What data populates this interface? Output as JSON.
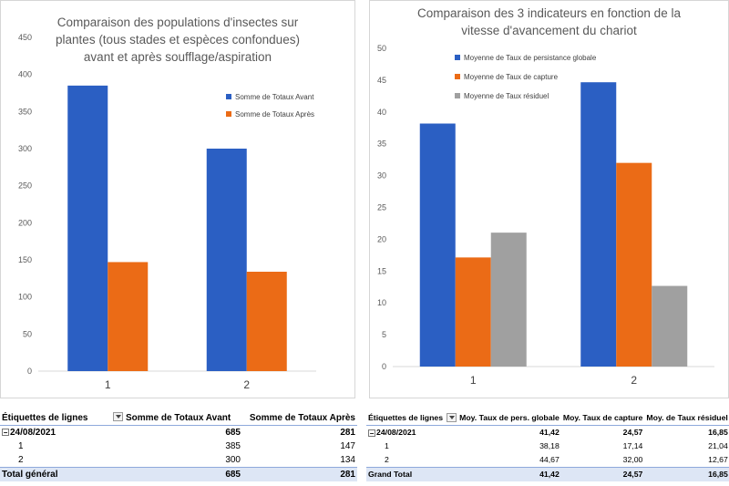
{
  "chart_data": [
    {
      "type": "bar",
      "title": "Comparaison des populations d'insectes sur\nplantes (tous stades et espèces confondues)\navant et après soufflage/aspiration",
      "categories": [
        "1",
        "2"
      ],
      "series": [
        {
          "name": "Somme de Totaux Avant",
          "values": [
            385,
            300
          ],
          "color": "#2b5fc3"
        },
        {
          "name": "Somme de Totaux Après",
          "values": [
            147,
            134
          ],
          "color": "#eb6b16"
        }
      ],
      "ylim": [
        0,
        450
      ],
      "yticks": [
        "0",
        "50",
        "100",
        "150",
        "200",
        "250",
        "300",
        "350",
        "400",
        "450"
      ],
      "grid": false,
      "legend": "right"
    },
    {
      "type": "bar",
      "title": "Comparaison des 3 indicateurs en fonction de la\nvitesse d'avancement du chariot",
      "categories": [
        "1",
        "2"
      ],
      "series": [
        {
          "name": "Moyenne de Taux de persistance globale",
          "values": [
            38.18,
            44.67
          ],
          "color": "#2b5fc3"
        },
        {
          "name": "Moyenne de Taux de capture",
          "values": [
            17.14,
            32.0
          ],
          "color": "#eb6b16"
        },
        {
          "name": "Moyenne de Taux résiduel",
          "values": [
            21.04,
            12.67
          ],
          "color": "#a0a0a0"
        }
      ],
      "ylim": [
        0,
        50
      ],
      "yticks": [
        "0",
        "5",
        "10",
        "15",
        "20",
        "25",
        "30",
        "35",
        "40",
        "45",
        "50"
      ],
      "grid": false,
      "legend": "top-left"
    }
  ],
  "pivot1": {
    "headers": [
      "Étiquettes de lignes",
      "Somme de Totaux Avant",
      "Somme de Totaux Après"
    ],
    "group": {
      "label": "24/08/2021",
      "values": [
        "685",
        "281"
      ]
    },
    "rows": [
      {
        "label": "1",
        "values": [
          "385",
          "147"
        ]
      },
      {
        "label": "2",
        "values": [
          "300",
          "134"
        ]
      }
    ],
    "total": {
      "label": "Total général",
      "values": [
        "685",
        "281"
      ]
    }
  },
  "pivot2": {
    "headers": [
      "Étiquettes de lignes",
      "Moy. Taux de pers. globale",
      "Moy.  Taux de capture",
      "Moy. de Taux résiduel"
    ],
    "group": {
      "label": "24/08/2021",
      "values": [
        "41,42",
        "24,57",
        "16,85"
      ]
    },
    "rows": [
      {
        "label": "1",
        "values": [
          "38,18",
          "17,14",
          "21,04"
        ]
      },
      {
        "label": "2",
        "values": [
          "44,67",
          "32,00",
          "12,67"
        ]
      }
    ],
    "total": {
      "label": "Grand Total",
      "values": [
        "41,42",
        "24,57",
        "16,85"
      ]
    }
  }
}
